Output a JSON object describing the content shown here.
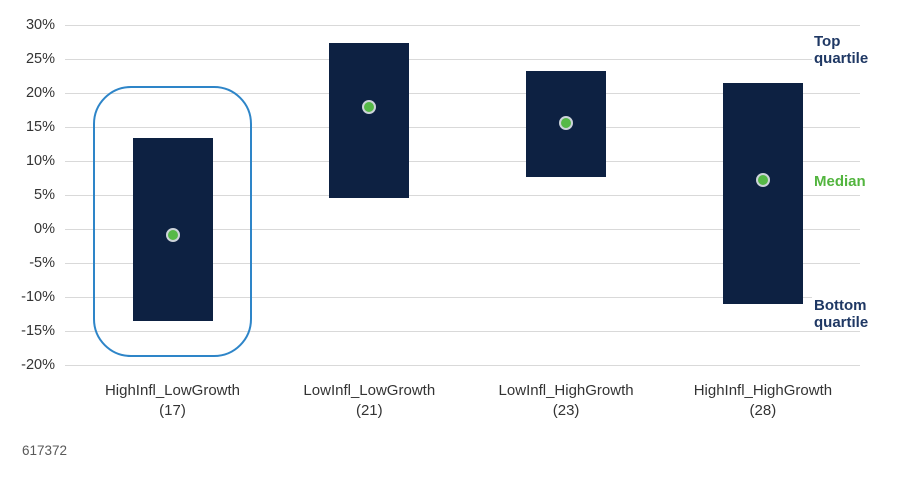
{
  "chart_data": {
    "type": "bar",
    "subtype": "floating-quartile-range",
    "title": "",
    "categories": [
      "HighInfl_LowGrowth",
      "LowInfl_LowGrowth",
      "LowInfl_HighGrowth",
      "HighInfl_HighGrowth"
    ],
    "category_counts": [
      "(17)",
      "(21)",
      "(23)",
      "(28)"
    ],
    "series": [
      {
        "name": "Top quartile",
        "values": [
          13.4,
          27.3,
          23.3,
          21.4
        ]
      },
      {
        "name": "Median",
        "values": [
          -0.9,
          18.0,
          15.6,
          7.2
        ]
      },
      {
        "name": "Bottom quartile",
        "values": [
          -13.5,
          4.6,
          7.6,
          -11.0
        ]
      }
    ],
    "ylim": [
      -20,
      30
    ],
    "y_ticks": [
      {
        "value": 30,
        "label": "30%"
      },
      {
        "value": 25,
        "label": "25%"
      },
      {
        "value": 20,
        "label": "20%"
      },
      {
        "value": 15,
        "label": "15%"
      },
      {
        "value": 10,
        "label": "10%"
      },
      {
        "value": 5,
        "label": "5%"
      },
      {
        "value": 0,
        "label": "0%"
      },
      {
        "value": -5,
        "label": "-5%"
      },
      {
        "value": -10,
        "label": "-10%"
      },
      {
        "value": -15,
        "label": "-15%"
      },
      {
        "value": -20,
        "label": "-20%"
      }
    ],
    "grid": true,
    "legend_position": "right-annotations",
    "annotations": {
      "top_quartile": "Top\nquartile",
      "median": "Median",
      "bottom_quartile": "Bottom\nquartile"
    },
    "highlight": {
      "category_index": 0,
      "top_value": 21,
      "bottom_value": -19
    },
    "footnote": "617372",
    "colors": {
      "bar_fill": "#0d2142",
      "median_dot_fill": "#56b947",
      "median_dot_ring": "#ccd3d9",
      "highlight_outline": "#2e85c8",
      "gridline": "#d9d9d9",
      "axis_text": "#333333",
      "navy_label_text": "#1f3864",
      "green_label_text": "#53b53f",
      "footnote_text": "#595959"
    }
  }
}
